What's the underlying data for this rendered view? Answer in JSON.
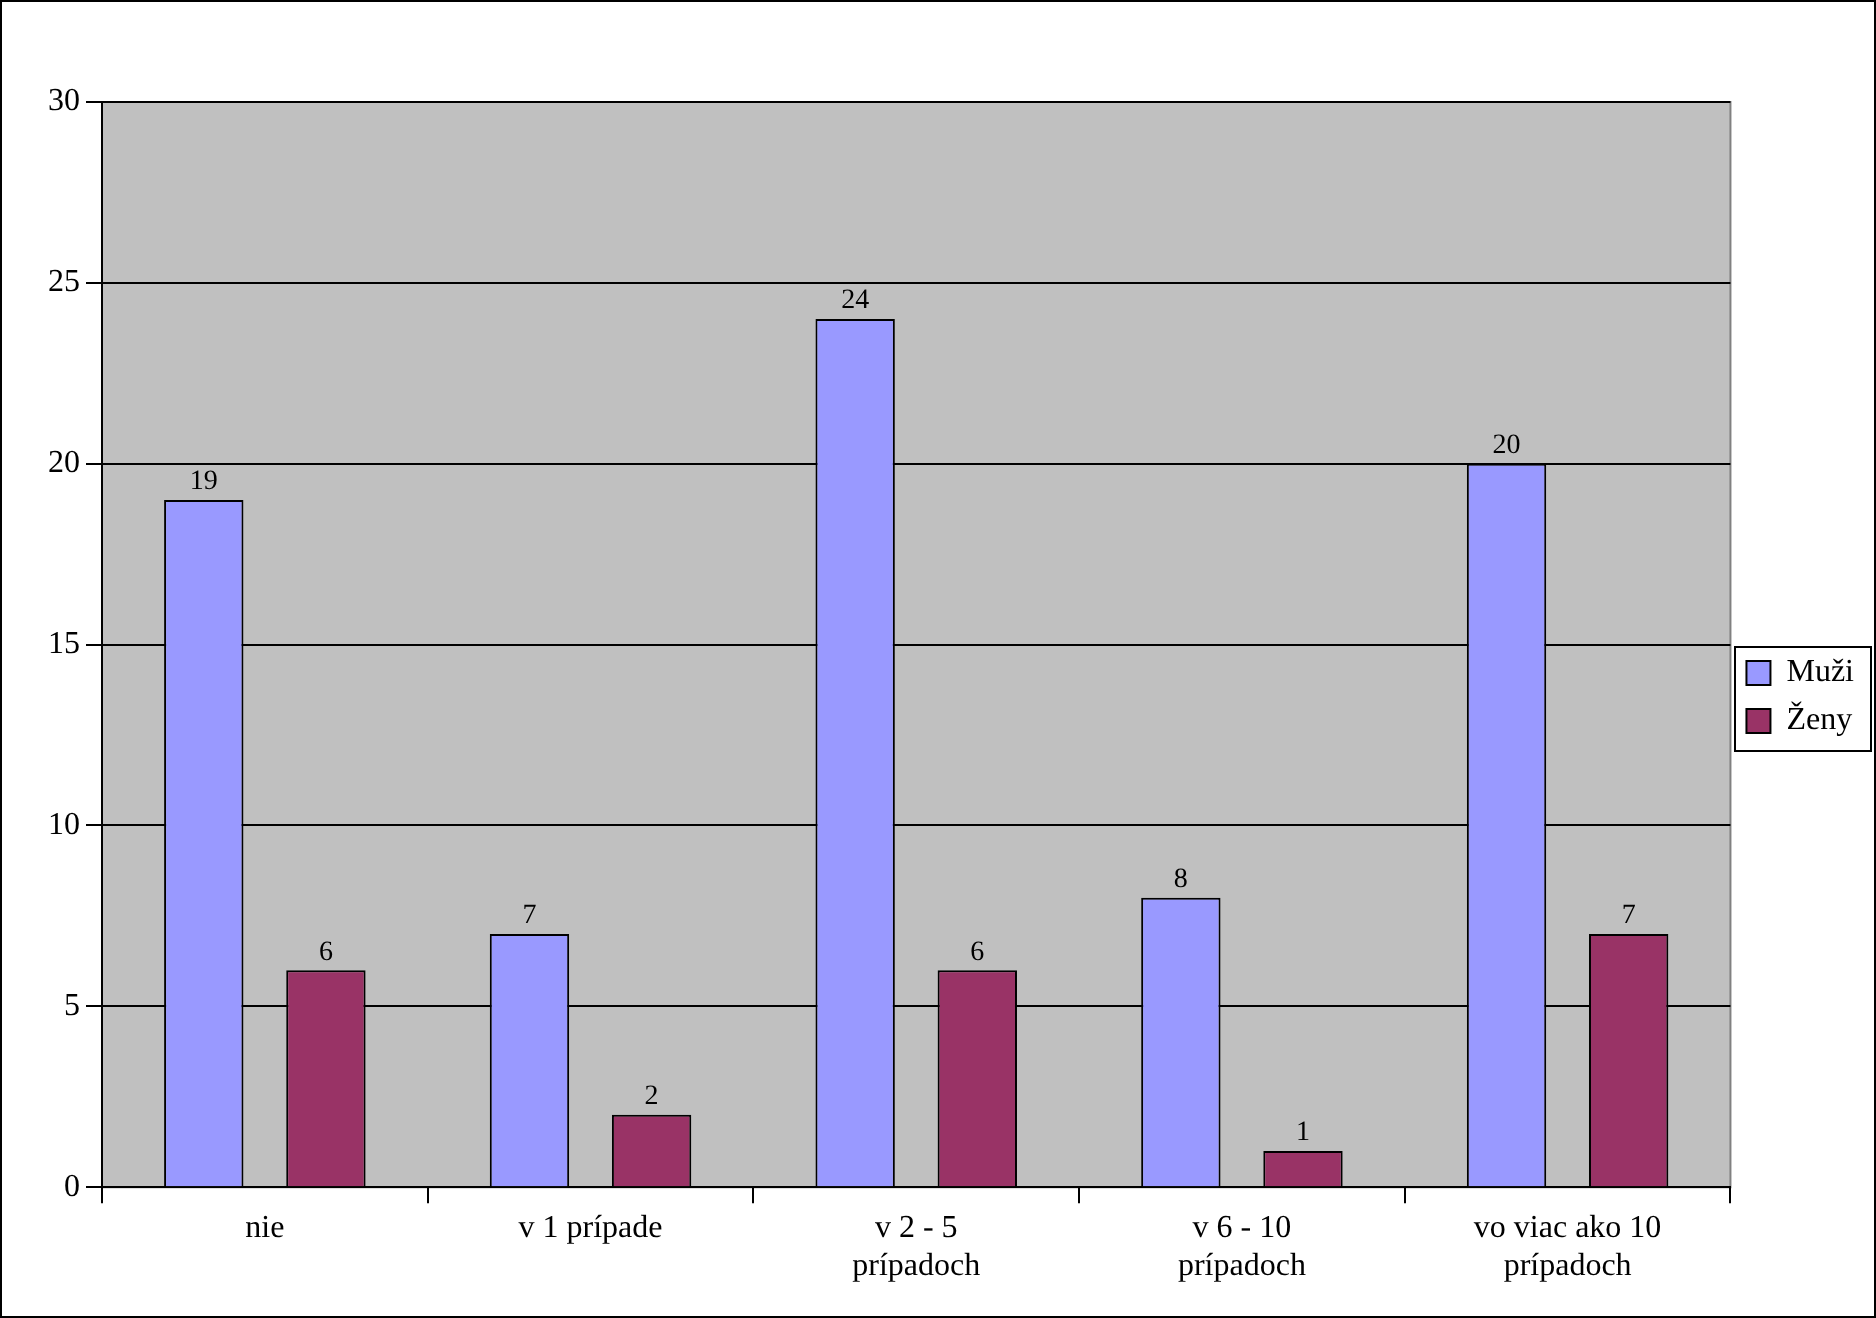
{
  "chart_data": {
    "type": "bar",
    "categories": [
      "nie",
      "v 1 prípade",
      "v 2 - 5 prípadoch",
      "v 6 - 10 prípadoch",
      "vo viac ako 10 prípadoch"
    ],
    "series": [
      {
        "name": "Muži",
        "color": "#9999ff",
        "values": [
          19,
          7,
          24,
          8,
          20
        ]
      },
      {
        "name": "Ženy",
        "color": "#993366",
        "values": [
          6,
          2,
          6,
          1,
          7
        ]
      }
    ],
    "ylim": [
      0,
      30
    ],
    "yticks": [
      0,
      5,
      10,
      15,
      20,
      25,
      30
    ],
    "grid": "y",
    "legend": "right",
    "data_labels": true
  }
}
